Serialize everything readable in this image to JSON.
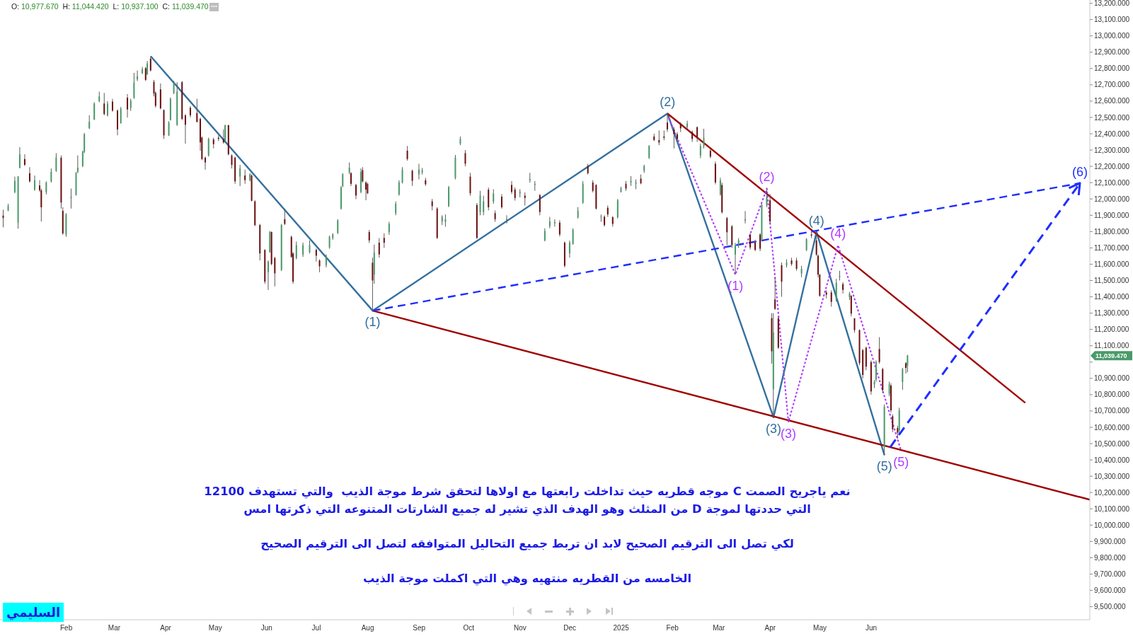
{
  "chart_data": {
    "type": "candlestick",
    "title": "O: 10,977.670 H: 11,044.420 L: 10,937.100 C: 11,039.470",
    "annotations": [
      "نعم ياجريح الصمت C موجه قطريه حيث تداخلت رابعتها مع اولاها لتحقق شرط موجة الذيب  والتي تستهدف 12100",
      "التي حددتها لموجة D من المثلث وهو الهدف الذي تشير له جميع الشارتات المتنوعه التي ذكرتها امس",
      "لكي تصل الى الترقيم الصحيح لابد ان تربط جميع التحاليل المتوافقه لتصل الى الترقيم الصحيح",
      "الخامسه من القطريه منتهيه وهي التي اكملت موجة الذيب",
      "السليمي",
      "11,039.470",
      {
        "text": "(1)",
        "x": "2024-08-04",
        "y": 11315
      },
      {
        "text": "(2)",
        "x": "2025-01-29",
        "y": 12524
      },
      {
        "text": "(3)",
        "x": "2025-04-03",
        "y": 10661
      },
      {
        "text": "(4)",
        "x": "2025-04-29",
        "y": 11797
      },
      {
        "text": "(5)",
        "x": "2025-06-09",
        "y": 10429
      },
      {
        "text": "(6)",
        "x": "2025-10-05",
        "y": 12097
      },
      {
        "text": "(1)",
        "x": "2025-03-11",
        "y": 11536
      },
      {
        "text": "(2)",
        "x": "2025-03-30",
        "y": 12064
      },
      {
        "text": "(3)",
        "x": "2025-04-12",
        "y": 10632
      },
      {
        "text": "(4)",
        "x": "2025-05-12",
        "y": 11717
      },
      {
        "text": "(5)",
        "x": "2025-06-19",
        "y": 10458
      }
    ],
    "x": [
      "2023-12-25",
      "2023-12-28",
      "2024-01-01",
      "2024-01-03",
      "2024-01-04",
      "2024-01-07",
      "2024-01-10",
      "2024-01-13",
      "2024-01-16",
      "2024-01-17",
      "2024-01-20",
      "2024-01-23",
      "2024-01-26",
      "2024-01-29",
      "2024-01-30",
      "2024-02-01",
      "2024-02-04",
      "2024-02-07",
      "2024-02-08",
      "2024-02-11",
      "2024-02-12",
      "2024-02-15",
      "2024-02-18",
      "2024-02-21",
      "2024-02-24",
      "2024-02-26",
      "2024-02-29",
      "2024-03-03",
      "2024-03-05",
      "2024-03-09",
      "2024-03-11",
      "2024-03-13",
      "2024-03-15",
      "2024-03-18",
      "2024-03-20",
      "2024-03-21",
      "2024-03-23",
      "2024-03-25",
      "2024-03-26",
      "2024-03-29",
      "2024-03-31",
      "2024-04-03",
      "2024-04-04",
      "2024-04-06",
      "2024-04-08",
      "2024-04-11",
      "2024-04-13",
      "2024-04-16",
      "2024-04-20",
      "2024-04-22",
      "2024-04-23",
      "2024-04-25",
      "2024-04-27",
      "2024-04-30",
      "2024-05-03",
      "2024-05-06",
      "2024-05-07",
      "2024-05-09",
      "2024-05-11",
      "2024-05-13",
      "2024-05-16",
      "2024-05-19",
      "2024-05-22",
      "2024-05-23",
      "2024-05-25",
      "2024-05-28",
      "2024-05-31",
      "2024-06-02",
      "2024-06-03",
      "2024-06-04",
      "2024-06-06",
      "2024-06-10",
      "2024-06-12",
      "2024-06-16",
      "2024-06-17",
      "2024-06-19",
      "2024-06-23",
      "2024-06-27",
      "2024-07-01",
      "2024-07-03",
      "2024-07-07",
      "2024-07-09",
      "2024-07-11",
      "2024-07-14",
      "2024-07-16",
      "2024-07-17",
      "2024-07-21",
      "2024-07-22",
      "2024-07-25",
      "2024-07-28",
      "2024-07-29",
      "2024-07-31",
      "2024-08-01",
      "2024-08-02",
      "2024-08-04",
      "2024-08-05",
      "2024-08-08",
      "2024-08-11",
      "2024-08-14",
      "2024-08-18",
      "2024-08-20",
      "2024-08-22",
      "2024-08-25",
      "2024-08-28",
      "2024-09-01",
      "2024-09-03",
      "2024-09-05",
      "2024-09-09",
      "2024-09-12",
      "2024-09-15",
      "2024-09-17",
      "2024-09-19",
      "2024-09-23",
      "2024-09-26",
      "2024-09-29",
      "2024-10-02",
      "2024-10-06",
      "2024-10-08",
      "2024-10-10",
      "2024-10-13",
      "2024-10-16",
      "2024-10-17",
      "2024-10-21",
      "2024-10-24",
      "2024-10-27",
      "2024-10-29",
      "2024-11-01",
      "2024-11-04",
      "2024-11-07",
      "2024-11-10",
      "2024-11-13",
      "2024-11-16",
      "2024-11-19",
      "2024-11-22",
      "2024-11-25",
      "2024-11-28",
      "2024-12-01",
      "2024-12-03",
      "2024-12-06",
      "2024-12-09",
      "2024-12-12",
      "2024-12-15",
      "2024-12-17",
      "2024-12-20",
      "2024-12-22",
      "2024-12-24",
      "2024-12-27",
      "2024-12-30",
      "2025-01-01",
      "2025-01-04",
      "2025-01-07",
      "2025-01-10",
      "2025-01-13",
      "2025-01-15",
      "2025-01-18",
      "2025-01-21",
      "2025-01-24",
      "2025-01-27",
      "2025-01-29",
      "2025-02-02",
      "2025-02-04",
      "2025-02-06",
      "2025-02-10",
      "2025-02-13",
      "2025-02-16",
      "2025-02-18",
      "2025-02-20",
      "2025-02-24",
      "2025-02-27",
      "2025-03-02",
      "2025-03-03",
      "2025-03-06",
      "2025-03-09",
      "2025-03-11",
      "2025-03-13",
      "2025-03-17",
      "2025-03-20",
      "2025-03-23",
      "2025-03-26",
      "2025-03-27",
      "2025-03-30",
      "2025-04-01",
      "2025-04-02",
      "2025-04-03",
      "2025-04-04",
      "2025-04-06",
      "2025-04-08",
      "2025-04-11",
      "2025-04-14",
      "2025-04-17",
      "2025-04-20",
      "2025-04-23",
      "2025-04-26",
      "2025-04-29",
      "2025-04-30",
      "2025-05-01",
      "2025-05-05",
      "2025-05-08",
      "2025-05-11",
      "2025-05-13",
      "2025-05-15",
      "2025-05-19",
      "2025-05-20",
      "2025-05-22",
      "2025-05-25",
      "2025-05-27",
      "2025-05-29",
      "2025-06-01",
      "2025-06-03",
      "2025-06-04",
      "2025-06-06",
      "2025-06-08",
      "2025-06-09",
      "2025-06-12",
      "2025-06-13",
      "2025-06-14",
      "2025-06-17",
      "2025-06-18",
      "2025-06-20",
      "2025-06-22",
      "2025-06-23"
    ],
    "ohlc": [
      [
        11898,
        11934,
        11826,
        11884
      ],
      [
        11931,
        11970,
        11925,
        11956
      ],
      [
        12043,
        12137,
        12035,
        12111
      ],
      [
        11855,
        12140,
        11818,
        12137
      ],
      [
        12192,
        12318,
        12187,
        12274
      ],
      [
        12245,
        12274,
        12202,
        12209
      ],
      [
        12158,
        12195,
        12101,
        12108
      ],
      [
        12057,
        12144,
        12050,
        12115
      ],
      [
        12083,
        12115,
        12043,
        12053
      ],
      [
        12053,
        12064,
        11862,
        11949
      ],
      [
        12043,
        12108,
        12028,
        12101
      ],
      [
        12108,
        12187,
        12101,
        12166
      ],
      [
        12173,
        12281,
        12166,
        12253
      ],
      [
        12253,
        12267,
        11941,
        11978
      ],
      [
        11927,
        11949,
        11780,
        11789
      ],
      [
        11782,
        11913,
        11768,
        11905
      ],
      [
        12006,
        12064,
        11941,
        12014
      ],
      [
        12024,
        12166,
        12021,
        12158
      ],
      [
        12166,
        12267,
        12158,
        12192
      ],
      [
        12202,
        12296,
        12195,
        12289
      ],
      [
        12289,
        12405,
        12281,
        12397
      ],
      [
        12433,
        12513,
        12429,
        12473
      ],
      [
        12487,
        12593,
        12484,
        12585
      ],
      [
        12600,
        12658,
        12593,
        12629
      ],
      [
        12585,
        12650,
        12513,
        12521
      ],
      [
        12513,
        12600,
        12506,
        12585
      ],
      [
        12597,
        12614,
        12535,
        12542
      ],
      [
        12542,
        12549,
        12390,
        12426
      ],
      [
        12465,
        12564,
        12462,
        12553
      ],
      [
        12621,
        12643,
        12499,
        12549
      ],
      [
        12559,
        12615,
        12540,
        12603
      ],
      [
        12621,
        12773,
        12614,
        12713
      ],
      [
        12733,
        12788,
        12723,
        12752
      ],
      [
        12771,
        12810,
        12766,
        12795
      ],
      [
        12802,
        12810,
        12723,
        12730
      ],
      [
        12766,
        12846,
        12759,
        12831
      ],
      [
        12860,
        12875,
        12781,
        12788
      ],
      [
        12718,
        12730,
        12629,
        12646
      ],
      [
        12650,
        12660,
        12560,
        12571
      ],
      [
        12672,
        12708,
        12549,
        12556
      ],
      [
        12545,
        12549,
        12368,
        12390
      ],
      [
        12390,
        12477,
        12386,
        12467
      ],
      [
        12484,
        12622,
        12481,
        12614
      ],
      [
        12650,
        12723,
        12643,
        12713
      ],
      [
        12455,
        12716,
        12448,
        12658
      ],
      [
        12716,
        12723,
        12484,
        12491
      ],
      [
        12513,
        12520,
        12339,
        12455
      ],
      [
        12559,
        12570,
        12500,
        12513
      ],
      [
        12527,
        12614,
        12470,
        12472
      ],
      [
        12491,
        12499,
        12296,
        12347
      ],
      [
        12376,
        12383,
        12238,
        12245
      ],
      [
        12253,
        12260,
        12180,
        12224
      ],
      [
        12267,
        12376,
        12260,
        12368
      ],
      [
        12365,
        12376,
        12310,
        12336
      ],
      [
        12376,
        12390,
        12355,
        12368
      ],
      [
        12368,
        12426,
        12339,
        12347
      ],
      [
        12357,
        12455,
        12354,
        12452
      ],
      [
        12452,
        12455,
        12267,
        12274
      ],
      [
        12267,
        12274,
        12187,
        12209
      ],
      [
        12253,
        12260,
        12093,
        12108
      ],
      [
        12137,
        12209,
        12079,
        12187
      ],
      [
        12144,
        12180,
        12093,
        12115
      ],
      [
        12115,
        12158,
        12108,
        12151
      ],
      [
        12144,
        12151,
        11985,
        11989
      ],
      [
        11985,
        11992,
        11833,
        11840
      ],
      [
        11840,
        11847,
        11623,
        11666
      ],
      [
        11688,
        11691,
        11480,
        11493
      ],
      [
        11551,
        11623,
        11442,
        11616
      ],
      [
        11674,
        11804,
        11671,
        11797
      ],
      [
        11797,
        11801,
        11594,
        11601
      ],
      [
        11638,
        11645,
        11464,
        11544
      ],
      [
        11565,
        11847,
        11558,
        11840
      ],
      [
        11876,
        11941,
        11840,
        11847
      ],
      [
        11768,
        11775,
        11638,
        11645
      ],
      [
        11666,
        11674,
        11480,
        11493
      ],
      [
        11638,
        11739,
        11630,
        11717
      ],
      [
        11659,
        11732,
        11645,
        11717
      ],
      [
        11674,
        11746,
        11666,
        11717
      ],
      [
        11688,
        11696,
        11616,
        11652
      ],
      [
        11623,
        11630,
        11551,
        11587
      ],
      [
        11594,
        11660,
        11580,
        11652
      ],
      [
        11703,
        11775,
        11695,
        11768
      ],
      [
        11761,
        11790,
        11750,
        11782
      ],
      [
        11792,
        11876,
        11785,
        11869
      ],
      [
        11941,
        12079,
        11935,
        12072
      ],
      [
        12079,
        12158,
        12072,
        12151
      ],
      [
        12163,
        12224,
        12151,
        12192
      ],
      [
        12158,
        12165,
        12079,
        12093
      ],
      [
        12086,
        12093,
        11999,
        12021
      ],
      [
        12043,
        12187,
        12035,
        12166
      ],
      [
        12177,
        12195,
        12100,
        12108
      ],
      [
        12101,
        12110,
        11992,
        12057
      ],
      [
        12093,
        12100,
        12030,
        12035
      ],
      [
        11797,
        11810,
        11730,
        11746
      ],
      [
        11609,
        11640,
        11315,
        11500
      ],
      [
        11536,
        11720,
        11480,
        11671
      ],
      [
        11732,
        11760,
        11640,
        11660
      ],
      [
        11761,
        11790,
        11700,
        11732
      ],
      [
        11797,
        11860,
        11780,
        11847
      ],
      [
        11913,
        11985,
        11900,
        11970
      ],
      [
        12028,
        12115,
        12020,
        12101
      ],
      [
        12101,
        12195,
        12095,
        12180
      ],
      [
        12296,
        12325,
        12235,
        12245
      ],
      [
        12173,
        12180,
        12080,
        12111
      ],
      [
        12151,
        12215,
        12120,
        12180
      ],
      [
        12165,
        12190,
        12150,
        12175
      ],
      [
        12115,
        12130,
        12080,
        12090
      ],
      [
        11985,
        12000,
        11930,
        11956
      ],
      [
        11941,
        11950,
        11755,
        11761
      ],
      [
        11862,
        11900,
        11840,
        11891
      ],
      [
        11860,
        11905,
        11830,
        11876
      ],
      [
        11956,
        12080,
        11950,
        12072
      ],
      [
        12130,
        12270,
        12120,
        12253
      ],
      [
        12339,
        12383,
        12330,
        12368
      ],
      [
        12281,
        12300,
        12200,
        12216
      ],
      [
        12137,
        12160,
        12020,
        12035
      ],
      [
        11963,
        11975,
        11755,
        11761
      ],
      [
        11920,
        12050,
        11900,
        12021
      ],
      [
        11920,
        12020,
        11900,
        11985
      ],
      [
        12057,
        12070,
        11930,
        11949
      ],
      [
        11985,
        12060,
        11970,
        12033
      ],
      [
        11913,
        11930,
        11860,
        11876
      ],
      [
        12014,
        12030,
        11940,
        11949
      ],
      [
        11870,
        11900,
        11850,
        11876
      ],
      [
        12086,
        12110,
        12030,
        12043
      ],
      [
        12057,
        12070,
        11990,
        12006
      ],
      [
        12035,
        12060,
        12010,
        12043
      ],
      [
        12021,
        12040,
        11960,
        12006
      ],
      [
        12115,
        12160,
        12100,
        12122
      ],
      [
        12086,
        12110,
        12050,
        12093
      ],
      [
        12024,
        12030,
        11900,
        11920
      ],
      [
        11746,
        11820,
        11740,
        11804
      ],
      [
        11833,
        11890,
        11820,
        11862
      ],
      [
        11850,
        11875,
        11830,
        11858
      ],
      [
        11855,
        11870,
        11770,
        11782
      ],
      [
        11732,
        11740,
        11580,
        11590
      ],
      [
        11666,
        11745,
        11640,
        11732
      ],
      [
        11724,
        11820,
        11720,
        11811
      ],
      [
        11888,
        11950,
        11880,
        11927
      ],
      [
        11978,
        12110,
        11970,
        12093
      ],
      [
        12202,
        12215,
        12150,
        12158
      ],
      [
        12101,
        12115,
        12040,
        12050
      ],
      [
        12086,
        12090,
        11935,
        11941
      ],
      [
        11888,
        11905,
        11860,
        11893
      ],
      [
        11891,
        11900,
        11830,
        11840
      ],
      [
        11946,
        11960,
        11890,
        11905
      ],
      [
        11888,
        11895,
        11830,
        11847
      ],
      [
        11888,
        12000,
        11880,
        11992
      ],
      [
        12043,
        12075,
        12040,
        12064
      ],
      [
        12093,
        12110,
        12050,
        12064
      ],
      [
        12101,
        12140,
        12080,
        12111
      ],
      [
        12093,
        12120,
        12060,
        12101
      ],
      [
        12125,
        12150,
        12090,
        12096
      ],
      [
        12173,
        12210,
        12160,
        12202
      ],
      [
        12253,
        12330,
        12245,
        12325
      ],
      [
        12383,
        12400,
        12355,
        12361
      ],
      [
        12361,
        12420,
        12330,
        12346
      ],
      [
        12383,
        12420,
        12360,
        12375
      ],
      [
        12469,
        12524,
        12411,
        12426
      ],
      [
        12426,
        12440,
        12310,
        12397
      ],
      [
        12397,
        12410,
        12350,
        12368
      ],
      [
        12462,
        12470,
        12410,
        12433
      ],
      [
        12440,
        12480,
        12430,
        12462
      ],
      [
        12411,
        12420,
        12350,
        12368
      ],
      [
        12440,
        12445,
        12350,
        12375
      ],
      [
        12267,
        12340,
        12250,
        12325
      ],
      [
        12325,
        12430,
        12310,
        12375
      ],
      [
        12296,
        12310,
        12250,
        12259
      ],
      [
        12216,
        12230,
        12090,
        12101
      ],
      [
        12028,
        12130,
        12020,
        12115
      ],
      [
        12086,
        12100,
        11910,
        11919
      ],
      [
        11883,
        11890,
        11717,
        11796
      ],
      [
        11832,
        11840,
        11700,
        11717
      ],
      [
        11659,
        11730,
        11536,
        11717
      ],
      [
        11717,
        11760,
        11700,
        11746
      ],
      [
        11868,
        11926,
        11850,
        11876
      ],
      [
        11782,
        11790,
        11690,
        11703
      ],
      [
        11732,
        11750,
        11680,
        11688
      ],
      [
        11782,
        11790,
        11680,
        11695
      ],
      [
        11746,
        11970,
        11740,
        11963
      ],
      [
        11963,
        12064,
        11950,
        12014
      ],
      [
        11992,
        12030,
        11850,
        11862
      ],
      [
        11269,
        11300,
        10990,
        11066
      ],
      [
        10834,
        11300,
        10661,
        11182
      ],
      [
        11384,
        11520,
        11320,
        11326
      ],
      [
        11269,
        11280,
        11080,
        11088
      ],
      [
        11594,
        11610,
        11400,
        11493
      ],
      [
        11594,
        11630,
        11580,
        11610
      ],
      [
        11623,
        11640,
        11590,
        11601
      ],
      [
        11623,
        11640,
        11560,
        11572
      ],
      [
        11543,
        11590,
        11520,
        11572
      ],
      [
        11688,
        11760,
        11680,
        11753
      ],
      [
        11782,
        11800,
        11760,
        11775
      ],
      [
        11746,
        11797,
        11650,
        11659
      ],
      [
        11652,
        11660,
        11520,
        11536
      ],
      [
        11536,
        11540,
        11400,
        11406
      ],
      [
        11427,
        11440,
        11390,
        11413
      ],
      [
        11427,
        11440,
        11340,
        11369
      ],
      [
        11384,
        11510,
        11370,
        11485
      ],
      [
        11522,
        11560,
        11500,
        11529
      ],
      [
        11478,
        11490,
        11420,
        11442
      ],
      [
        11398,
        11430,
        11380,
        11420
      ],
      [
        11406,
        11410,
        11280,
        11297
      ],
      [
        11268,
        11270,
        11180,
        11196
      ],
      [
        11196,
        11200,
        10980,
        10993
      ],
      [
        11073,
        11080,
        10900,
        10921
      ],
      [
        11088,
        11095,
        10950,
        10972
      ],
      [
        11000,
        11010,
        10800,
        10820
      ],
      [
        10863,
        10890,
        10840,
        10878
      ],
      [
        10892,
        11010,
        10880,
        11000
      ],
      [
        11080,
        11153,
        10990,
        11000
      ],
      [
        10957,
        10965,
        10810,
        10827
      ],
      [
        10480,
        10740,
        10429,
        10726
      ],
      [
        10805,
        10880,
        10790,
        10863
      ],
      [
        10856,
        10870,
        10690,
        10704
      ],
      [
        10668,
        10680,
        10570,
        10588
      ],
      [
        10595,
        10610,
        10530,
        10567
      ],
      [
        10581,
        10720,
        10560,
        10704
      ],
      [
        10878,
        10965,
        10830,
        10957
      ],
      [
        10993,
        11000,
        10930,
        10964
      ],
      [
        10977.67,
        11044.42,
        10937.1,
        11039.47
      ]
    ],
    "colors": [
      "#6b1010",
      "#4a9a6a",
      "#4a9a6a",
      "#4a9a6a",
      "#4a9a6a",
      "#6b1010",
      "#6b1010",
      "#4a9a6a",
      "#6b1010",
      "#6b1010",
      "#4a9a6a",
      "#4a9a6a",
      "#4a9a6a",
      "#6b1010",
      "#6b1010",
      "#4a9a6a",
      "#4a9a6a",
      "#4a9a6a",
      "#4a9a6a",
      "#4a9a6a",
      "#4a9a6a",
      "#4a9a6a",
      "#4a9a6a",
      "#4a9a6a",
      "#6b1010",
      "#4a9a6a",
      "#6b1010",
      "#6b1010",
      "#4a9a6a",
      "#6b1010",
      "#4a9a6a",
      "#4a9a6a",
      "#4a9a6a",
      "#4a9a6a",
      "#6b1010",
      "#4a9a6a",
      "#6b1010",
      "#6b1010",
      "#6b1010",
      "#6b1010",
      "#6b1010",
      "#4a9a6a",
      "#4a9a6a",
      "#4a9a6a",
      "#4a9a6a",
      "#6b1010",
      "#6b1010",
      "#6b1010",
      "#6b1010",
      "#6b1010",
      "#6b1010",
      "#6b1010",
      "#4a9a6a",
      "#6b1010",
      "#6b1010",
      "#6b1010",
      "#4a9a6a",
      "#6b1010",
      "#6b1010",
      "#6b1010",
      "#4a9a6a",
      "#6b1010",
      "#4a9a6a",
      "#6b1010",
      "#6b1010",
      "#6b1010",
      "#6b1010",
      "#4a9a6a",
      "#4a9a6a",
      "#6b1010",
      "#6b1010",
      "#4a9a6a",
      "#6b1010",
      "#6b1010",
      "#6b1010",
      "#4a9a6a",
      "#4a9a6a",
      "#4a9a6a",
      "#6b1010",
      "#6b1010",
      "#4a9a6a",
      "#4a9a6a",
      "#4a9a6a",
      "#4a9a6a",
      "#4a9a6a",
      "#4a9a6a",
      "#4a9a6a",
      "#6b1010",
      "#6b1010",
      "#4a9a6a",
      "#6b1010",
      "#6b1010",
      "#6b1010",
      "#6b1010",
      "#6b1010",
      "#4a9a6a",
      "#6b1010",
      "#6b1010",
      "#4a9a6a",
      "#4a9a6a",
      "#4a9a6a",
      "#4a9a6a",
      "#6b1010",
      "#6b1010",
      "#4a9a6a",
      "#4a9a6a",
      "#6b1010",
      "#6b1010",
      "#6b1010",
      "#4a9a6a",
      "#4a9a6a",
      "#4a9a6a",
      "#4a9a6a",
      "#4a9a6a",
      "#6b1010",
      "#6b1010",
      "#6b1010",
      "#4a9a6a",
      "#4a9a6a",
      "#6b1010",
      "#4a9a6a",
      "#6b1010",
      "#6b1010",
      "#4a9a6a",
      "#6b1010",
      "#6b1010",
      "#4a9a6a",
      "#6b1010",
      "#4a9a6a",
      "#4a9a6a",
      "#6b1010",
      "#4a9a6a",
      "#4a9a6a",
      "#4a9a6a",
      "#6b1010",
      "#6b1010",
      "#4a9a6a",
      "#4a9a6a",
      "#4a9a6a",
      "#4a9a6a",
      "#6b1010",
      "#6b1010",
      "#6b1010",
      "#4a9a6a",
      "#6b1010",
      "#6b1010",
      "#6b1010",
      "#4a9a6a",
      "#4a9a6a",
      "#6b1010",
      "#4a9a6a",
      "#4a9a6a",
      "#6b1010",
      "#4a9a6a",
      "#4a9a6a",
      "#6b1010",
      "#6b1010",
      "#6b1010",
      "#6b1010",
      "#6b1010",
      "#6b1010",
      "#6b1010",
      "#4a9a6a",
      "#6b1010",
      "#6b1010",
      "#4a9a6a",
      "#4a9a6a",
      "#6b1010",
      "#6b1010",
      "#4a9a6a",
      "#6b1010",
      "#6b1010",
      "#6b1010",
      "#4a9a6a",
      "#4a9a6a",
      "#4a9a6a",
      "#6b1010",
      "#6b1010",
      "#6b1010",
      "#4a9a6a",
      "#4a9a6a",
      "#6b1010",
      "#6b1010",
      "#4a9a6a",
      "#6b1010",
      "#6b1010",
      "#6b1010",
      "#4a9a6a",
      "#6b1010",
      "#6b1010",
      "#4a9a6a",
      "#4a9a6a",
      "#6b1010",
      "#6b1010",
      "#6b1010",
      "#6b1010",
      "#6b1010",
      "#6b1010",
      "#4a9a6a",
      "#4a9a6a",
      "#6b1010",
      "#4a9a6a",
      "#6b1010",
      "#6b1010",
      "#6b1010",
      "#6b1010",
      "#6b1010",
      "#6b1010",
      "#4a9a6a",
      "#4a9a6a",
      "#6b1010",
      "#6b1010",
      "#4a9a6a",
      "#4a9a6a",
      "#6b1010",
      "#6b1010",
      "#6b1010",
      "#4a9a6a",
      "#4a9a6a",
      "#6b1010",
      "#4a9a6a"
    ],
    "series": [
      {
        "type": "line",
        "color": "#34709f",
        "line_style": "solid",
        "x": [
          "2024-03-23",
          "2024-08-04",
          "2025-01-29",
          "2025-04-03",
          "2025-04-29",
          "2025-06-09"
        ],
        "values": [
          12875,
          11315,
          12524,
          10661,
          11797,
          10429
        ]
      },
      {
        "type": "line",
        "color": "#a00000",
        "line_style": "solid",
        "x": [
          "2025-01-29",
          "2025-09-02"
        ],
        "values": [
          12524,
          10750
        ]
      },
      {
        "type": "line",
        "color": "#a00000",
        "line_style": "solid",
        "x": [
          "2024-08-04",
          "2025-10-11"
        ],
        "values": [
          11315,
          10156
        ]
      },
      {
        "type": "line",
        "color": "#1f2eff",
        "line_style": "dashed",
        "x": [
          "2024-08-04",
          "2025-10-05"
        ],
        "values": [
          11315,
          12097
        ]
      },
      {
        "type": "line",
        "color": "#b03cff",
        "line_style": "dotted",
        "x": [
          "2025-01-30",
          "2025-03-11",
          "2025-03-30",
          "2025-04-12",
          "2025-05-12",
          "2025-06-19"
        ],
        "values": [
          12490,
          11536,
          12064,
          10632,
          11717,
          10458
        ]
      }
    ],
    "xlim": [
      "2023-12-23",
      "2025-10-11"
    ],
    "xticks": [
      {
        "value": "2024-02-01",
        "label": "Feb"
      },
      {
        "value": "2024-03-01",
        "label": "Mar"
      },
      {
        "value": "2024-04-01",
        "label": "Apr"
      },
      {
        "value": "2024-05-01",
        "label": "May"
      },
      {
        "value": "2024-06-01",
        "label": "Jun"
      },
      {
        "value": "2024-07-01",
        "label": "Jul"
      },
      {
        "value": "2024-08-01",
        "label": "Aug"
      },
      {
        "value": "2024-09-01",
        "label": "Sep"
      },
      {
        "value": "2024-10-01",
        "label": "Oct"
      },
      {
        "value": "2024-11-01",
        "label": "Nov"
      },
      {
        "value": "2024-12-01",
        "label": "Dec"
      },
      {
        "value": "2025-01-01",
        "label": "2025"
      },
      {
        "value": "2025-02-01",
        "label": "Feb"
      },
      {
        "value": "2025-03-01",
        "label": "Mar"
      },
      {
        "value": "2025-04-01",
        "label": "Apr"
      },
      {
        "value": "2025-05-01",
        "label": "May"
      },
      {
        "value": "2025-06-01",
        "label": "Jun"
      }
    ],
    "ylim": [
      9420,
      13220
    ],
    "yticks": [
      {
        "value": 9500,
        "label": "9,500.000"
      },
      {
        "value": 9600,
        "label": "9,600.000"
      },
      {
        "value": 9700,
        "label": "9,700.000"
      },
      {
        "value": 9800,
        "label": "9,800.000"
      },
      {
        "value": 9900,
        "label": "9,900.000"
      },
      {
        "value": 10000,
        "label": "10,000.000"
      },
      {
        "value": 10100,
        "label": "10,100.000"
      },
      {
        "value": 10200,
        "label": "10,200.000"
      },
      {
        "value": 10300,
        "label": "10,300.000"
      },
      {
        "value": 10400,
        "label": "10,400.000"
      },
      {
        "value": 10500,
        "label": "10,500.000"
      },
      {
        "value": 10600,
        "label": "10,600.000"
      },
      {
        "value": 10700,
        "label": "10,700.000"
      },
      {
        "value": 10800,
        "label": "10,800.000"
      },
      {
        "value": 10900,
        "label": "10,900.000"
      },
      {
        "value": 11000,
        "label": null
      },
      {
        "value": 11100,
        "label": "11,100.000"
      },
      {
        "value": 11200,
        "label": "11,200.000"
      },
      {
        "value": 11300,
        "label": "11,300.000"
      },
      {
        "value": 11400,
        "label": "11,400.000"
      },
      {
        "value": 11500,
        "label": "11,500.000"
      },
      {
        "value": 11600,
        "label": "11,600.000"
      },
      {
        "value": 11700,
        "label": "11,700.000"
      },
      {
        "value": 11800,
        "label": "11,800.000"
      },
      {
        "value": 11900,
        "label": "11,900.000"
      },
      {
        "value": 12000,
        "label": "12,000.000"
      },
      {
        "value": 12100,
        "label": "12,100.000"
      },
      {
        "value": 12200,
        "label": "12,200.000"
      },
      {
        "value": 12300,
        "label": "12,300.000"
      },
      {
        "value": 12400,
        "label": "12,400.000"
      },
      {
        "value": 12500,
        "label": "12,500.000"
      },
      {
        "value": 12600,
        "label": "12,600.000"
      },
      {
        "value": 12700,
        "label": "12,700.000"
      },
      {
        "value": 12800,
        "label": "12,800.000"
      },
      {
        "value": 12900,
        "label": "12,900.000"
      },
      {
        "value": 13000,
        "label": "13,000.000"
      },
      {
        "value": 13100,
        "label": "13,100.000"
      },
      {
        "value": 13200,
        "label": "13,200.000"
      }
    ]
  }
}
